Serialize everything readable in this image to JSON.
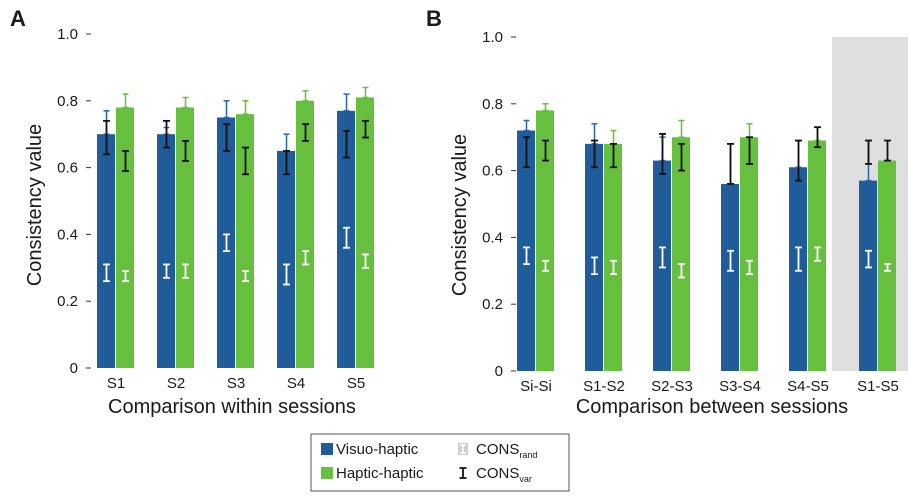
{
  "colors": {
    "visuo": "#1f5c99",
    "haptic": "#66bf3d",
    "cons_rand": "#ffffff",
    "cons_var": "#111111",
    "highlight": "#dedede",
    "data_err": "#2a64a8",
    "haptic_err": "#66bf3d"
  },
  "legend": {
    "visuo": "Visuo-haptic",
    "haptic": "Haptic-haptic",
    "rand_main": "CONS",
    "rand_sub": "rand",
    "var_main": "CONS",
    "var_sub": "var"
  },
  "chart_data": [
    {
      "type": "bar",
      "panel_label": "A",
      "title": "",
      "xlabel": "Comparison within sessions",
      "ylabel": "Consistency value",
      "ylim": [
        0,
        1.0
      ],
      "yticks": [
        "0",
        "0.2",
        "0.4",
        "0.6",
        "0.8",
        "1.0"
      ],
      "grid": false,
      "categories": [
        "S1",
        "S2",
        "S3",
        "S4",
        "S5"
      ],
      "series": [
        {
          "name": "Visuo-haptic",
          "values": [
            0.7,
            0.7,
            0.75,
            0.65,
            0.77
          ],
          "error": [
            0.07,
            0.02,
            0.05,
            0.05,
            0.05
          ],
          "cons_var": [
            [
              0.64,
              0.74
            ],
            [
              0.66,
              0.74
            ],
            [
              0.65,
              0.73
            ],
            [
              0.58,
              0.65
            ],
            [
              0.63,
              0.71
            ]
          ],
          "cons_rand": [
            [
              0.26,
              0.31
            ],
            [
              0.27,
              0.31
            ],
            [
              0.35,
              0.4
            ],
            [
              0.25,
              0.31
            ],
            [
              0.36,
              0.42
            ]
          ]
        },
        {
          "name": "Haptic-haptic",
          "values": [
            0.78,
            0.78,
            0.76,
            0.8,
            0.81
          ],
          "error": [
            0.04,
            0.03,
            0.04,
            0.03,
            0.03
          ],
          "cons_var": [
            [
              0.59,
              0.65
            ],
            [
              0.62,
              0.68
            ],
            [
              0.58,
              0.66
            ],
            [
              0.68,
              0.73
            ],
            [
              0.69,
              0.74
            ]
          ],
          "cons_rand": [
            [
              0.26,
              0.29
            ],
            [
              0.27,
              0.31
            ],
            [
              0.26,
              0.29
            ],
            [
              0.31,
              0.35
            ],
            [
              0.3,
              0.34
            ]
          ]
        }
      ]
    },
    {
      "type": "bar",
      "panel_label": "B",
      "title": "",
      "xlabel": "Comparison between sessions",
      "ylabel": "Consistency value",
      "ylim": [
        0,
        1.0
      ],
      "yticks": [
        "0",
        "0.2",
        "0.4",
        "0.6",
        "0.8",
        "1.0"
      ],
      "grid": false,
      "highlighted_category": "S1-S5",
      "categories": [
        "Si-Si",
        "S1-S2",
        "S2-S3",
        "S3-S4",
        "S4-S5",
        "S1-S5"
      ],
      "series": [
        {
          "name": "Visuo-haptic",
          "values": [
            0.72,
            0.68,
            0.63,
            0.56,
            0.61,
            0.57
          ],
          "error": [
            0.03,
            0.06,
            0.07,
            0.12,
            0.08,
            0.12
          ],
          "cons_var": [
            [
              0.61,
              0.7
            ],
            [
              0.61,
              0.69
            ],
            [
              0.59,
              0.71
            ],
            [
              0.56,
              0.68
            ],
            [
              0.57,
              0.69
            ],
            [
              0.62,
              0.69
            ]
          ],
          "cons_rand": [
            [
              0.32,
              0.37
            ],
            [
              0.29,
              0.34
            ],
            [
              0.31,
              0.37
            ],
            [
              0.3,
              0.36
            ],
            [
              0.3,
              0.37
            ],
            [
              0.31,
              0.36
            ]
          ]
        },
        {
          "name": "Haptic-haptic",
          "values": [
            0.78,
            0.68,
            0.7,
            0.7,
            0.69,
            0.63
          ],
          "error": [
            0.02,
            0.04,
            0.05,
            0.04,
            0.04,
            0.0
          ],
          "cons_var": [
            [
              0.63,
              0.69
            ],
            [
              0.61,
              0.68
            ],
            [
              0.6,
              0.68
            ],
            [
              0.62,
              0.7
            ],
            [
              0.67,
              0.73
            ],
            [
              0.63,
              0.69
            ]
          ],
          "cons_rand": [
            [
              0.3,
              0.33
            ],
            [
              0.29,
              0.33
            ],
            [
              0.28,
              0.32
            ],
            [
              0.29,
              0.33
            ],
            [
              0.33,
              0.37
            ],
            [
              0.3,
              0.32
            ]
          ]
        }
      ]
    }
  ]
}
